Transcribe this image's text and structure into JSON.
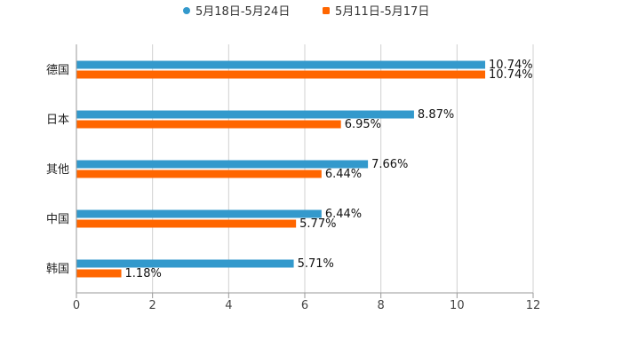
{
  "chart_data": {
    "type": "bar",
    "orientation": "horizontal",
    "title": "",
    "xlabel": "",
    "ylabel": "",
    "categories": [
      "德国",
      "日本",
      "其他",
      "中国",
      "韩国"
    ],
    "series": [
      {
        "name": "5月18日-5月24日",
        "color": "#3399cc",
        "values": [
          10.74,
          8.87,
          7.66,
          6.44,
          5.71
        ],
        "labels": [
          "10.74%",
          "8.87%",
          "7.66%",
          "6.44%",
          "5.71%"
        ]
      },
      {
        "name": "5月11日-5月17日",
        "color": "#ff6600",
        "values": [
          10.74,
          6.95,
          6.44,
          5.77,
          1.18
        ],
        "labels": [
          "10.74%",
          "6.95%",
          "6.44%",
          "5.77%",
          "1.18%"
        ]
      }
    ],
    "xlim": [
      0,
      12
    ],
    "xticks": [
      "0",
      "2",
      "4",
      "6",
      "8",
      "10",
      "12"
    ],
    "grid": true,
    "legend_position": "top-center"
  }
}
